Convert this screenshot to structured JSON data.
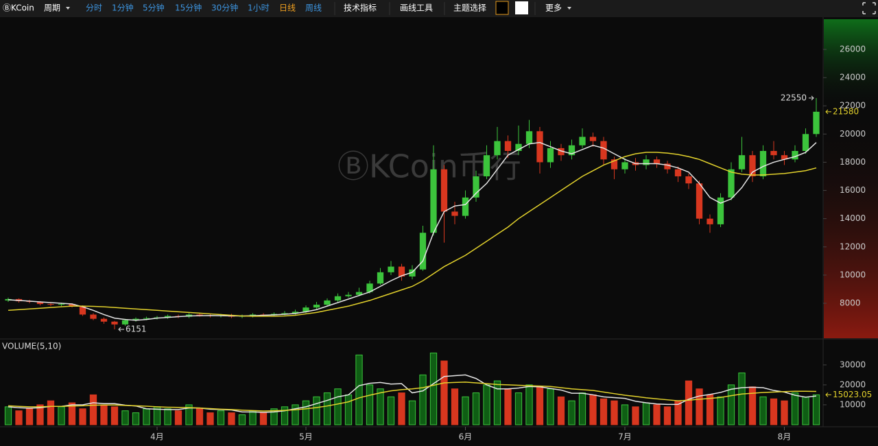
{
  "toolbar": {
    "logo": "ⒷKCoin",
    "period": "周期",
    "intervals": [
      "分时",
      "1分钟",
      "5分钟",
      "15分钟",
      "30分钟",
      "1小时",
      "日线",
      "周线"
    ],
    "active_interval": "日线",
    "buttons": [
      "技术指标",
      "画线工具"
    ],
    "theme": "主题选择",
    "more": "更多"
  },
  "watermark": "ⒷKCoin币行",
  "chart_data": {
    "type": "candlestick",
    "categories": [
      null,
      null,
      null,
      null,
      null,
      null,
      null,
      null,
      null,
      null,
      null,
      null,
      null,
      null,
      "4月",
      null,
      null,
      null,
      null,
      null,
      null,
      null,
      null,
      null,
      null,
      null,
      null,
      null,
      "5月",
      null,
      null,
      null,
      null,
      null,
      null,
      null,
      null,
      null,
      null,
      null,
      null,
      null,
      null,
      "6月",
      null,
      null,
      null,
      null,
      null,
      null,
      null,
      null,
      null,
      null,
      null,
      null,
      null,
      null,
      "7月",
      null,
      null,
      null,
      null,
      null,
      null,
      null,
      null,
      null,
      null,
      null,
      null,
      null,
      null,
      "8月",
      null,
      null,
      null
    ],
    "open": [
      8200,
      8300,
      8150,
      8100,
      7950,
      7900,
      7950,
      7800,
      7200,
      6900,
      6700,
      6500,
      6800,
      6900,
      6950,
      7000,
      7100,
      7050,
      7200,
      7150,
      7100,
      7150,
      7050,
      7100,
      7200,
      7150,
      7250,
      7300,
      7400,
      7700,
      7900,
      8200,
      8500,
      8600,
      8800,
      9400,
      10200,
      10600,
      9900,
      10400,
      13000,
      17500,
      14500,
      14200,
      15500,
      17000,
      18500,
      19500,
      18800,
      19300,
      20200,
      18000,
      19000,
      18500,
      19200,
      19800,
      19500,
      18200,
      17500,
      18000,
      17800,
      18200,
      17900,
      17500,
      17000,
      16500,
      14000,
      13600,
      15500,
      17500,
      18500,
      17000,
      18800,
      18500,
      18200,
      18800,
      20000
    ],
    "high": [
      8400,
      8350,
      8250,
      8150,
      8050,
      8050,
      8000,
      7850,
      7300,
      7000,
      6750,
      6900,
      7000,
      7050,
      7100,
      7200,
      7200,
      7300,
      7300,
      7250,
      7250,
      7250,
      7200,
      7300,
      7300,
      7350,
      7450,
      7550,
      7850,
      8100,
      8350,
      8700,
      8800,
      9100,
      9600,
      10500,
      11000,
      10800,
      10700,
      13500,
      19200,
      17800,
      15200,
      16000,
      17400,
      19200,
      20500,
      19900,
      20600,
      21000,
      20500,
      19500,
      19300,
      19600,
      20400,
      20100,
      19800,
      18400,
      18300,
      18300,
      18500,
      18400,
      18100,
      17700,
      17200,
      16700,
      14300,
      15800,
      18000,
      19800,
      18800,
      19200,
      19500,
      18800,
      19200,
      20400,
      22550
    ],
    "low": [
      8100,
      8050,
      8000,
      7850,
      7800,
      7800,
      7700,
      7100,
      6800,
      6550,
      6151,
      6400,
      6700,
      6800,
      6850,
      6900,
      6950,
      6950,
      7050,
      7000,
      7000,
      6950,
      6950,
      7000,
      7050,
      7050,
      7150,
      7200,
      7300,
      7600,
      7800,
      8100,
      8400,
      8500,
      8700,
      9300,
      10000,
      9600,
      9700,
      10300,
      12800,
      12300,
      13600,
      14000,
      15200,
      16800,
      18200,
      18300,
      18500,
      19000,
      17200,
      17600,
      18100,
      18200,
      19000,
      19100,
      17800,
      16800,
      17200,
      17400,
      17500,
      17600,
      17200,
      16600,
      16100,
      13600,
      13000,
      13400,
      15300,
      17300,
      16600,
      16800,
      18200,
      17800,
      18000,
      18600,
      19800
    ],
    "close": [
      8300,
      8150,
      8100,
      7950,
      7900,
      7950,
      7800,
      7200,
      6900,
      6700,
      6500,
      6800,
      6900,
      6950,
      7000,
      7100,
      7050,
      7200,
      7150,
      7100,
      7150,
      7050,
      7100,
      7200,
      7150,
      7250,
      7300,
      7400,
      7700,
      7900,
      8200,
      8500,
      8600,
      8800,
      9400,
      10200,
      10600,
      9900,
      10400,
      13000,
      17500,
      14500,
      14200,
      15500,
      17000,
      18500,
      19500,
      18800,
      19300,
      20200,
      18000,
      19000,
      18500,
      19200,
      19800,
      19500,
      18200,
      17500,
      18000,
      17800,
      18200,
      17900,
      17500,
      17000,
      16500,
      14000,
      13600,
      15500,
      17500,
      18500,
      17000,
      18800,
      18500,
      18200,
      18800,
      20000,
      21580
    ],
    "up_color": "#3cc43c",
    "down_color": "#d8371f",
    "lines": [
      {
        "color": "#e6e6e6",
        "values": [
          8250,
          8200,
          8150,
          8100,
          8050,
          8000,
          7950,
          7750,
          7500,
          7200,
          6950,
          6850,
          6800,
          6850,
          6950,
          7000,
          7050,
          7100,
          7120,
          7130,
          7120,
          7110,
          7100,
          7120,
          7150,
          7180,
          7220,
          7280,
          7400,
          7550,
          7800,
          8050,
          8300,
          8550,
          8800,
          9200,
          9600,
          9950,
          10200,
          11000,
          13000,
          14500,
          14900,
          15000,
          15800,
          16500,
          17500,
          18500,
          18900,
          19300,
          19400,
          19100,
          18800,
          18600,
          18900,
          19200,
          19000,
          18600,
          18200,
          17900,
          17900,
          17900,
          17800,
          17600,
          17300,
          16500,
          15500,
          15100,
          15400,
          16200,
          17300,
          17700,
          18000,
          18200,
          18400,
          18700,
          19400
        ]
      },
      {
        "color": "#e3d22c",
        "values": [
          7500,
          7550,
          7600,
          7650,
          7700,
          7750,
          7800,
          7800,
          7780,
          7750,
          7700,
          7650,
          7600,
          7550,
          7500,
          7450,
          7400,
          7350,
          7300,
          7250,
          7200,
          7150,
          7100,
          7080,
          7080,
          7080,
          7100,
          7150,
          7250,
          7350,
          7500,
          7650,
          7800,
          8000,
          8200,
          8450,
          8700,
          8950,
          9200,
          9600,
          10100,
          10600,
          11000,
          11400,
          11900,
          12400,
          12900,
          13400,
          14000,
          14500,
          15000,
          15500,
          16000,
          16500,
          17000,
          17400,
          17800,
          18100,
          18400,
          18600,
          18700,
          18700,
          18650,
          18550,
          18400,
          18200,
          17900,
          17600,
          17300,
          17150,
          17100,
          17100,
          17150,
          17200,
          17300,
          17400,
          17600
        ]
      }
    ],
    "ylim": [
      5520,
      28140
    ],
    "yticks": [
      8000,
      10000,
      12000,
      14000,
      16000,
      18000,
      20000,
      22000,
      24000,
      26000
    ],
    "volume": {
      "label": "VOLUME(5,10)",
      "values": [
        9000,
        7000,
        8000,
        10000,
        12000,
        9000,
        11000,
        8000,
        15000,
        10000,
        9000,
        7000,
        6000,
        8000,
        9000,
        8000,
        7000,
        10000,
        8000,
        6000,
        7000,
        6000,
        5000,
        7000,
        6000,
        8000,
        9000,
        10000,
        12000,
        14000,
        16000,
        18000,
        15000,
        35000,
        20000,
        18000,
        14000,
        16000,
        12000,
        25000,
        36000,
        32000,
        18000,
        14000,
        16000,
        20000,
        22000,
        18000,
        16000,
        20000,
        19000,
        18000,
        14000,
        12000,
        16000,
        15000,
        13000,
        12000,
        10000,
        9000,
        11000,
        10000,
        9000,
        12000,
        22000,
        18000,
        15000,
        14000,
        20000,
        26000,
        19000,
        14000,
        13000,
        12000,
        16000,
        14000,
        15023.05
      ],
      "lines": [
        {
          "color": "#e6e6e6",
          "values": [
            9000,
            8500,
            8300,
            8500,
            9200,
            9200,
            10000,
            10000,
            11000,
            10600,
            10600,
            9800,
            9400,
            8000,
            7800,
            7600,
            7600,
            8400,
            8400,
            7800,
            7600,
            7400,
            6400,
            6400,
            6200,
            6400,
            7000,
            8000,
            9000,
            10600,
            12200,
            14000,
            15000,
            19600,
            20800,
            21200,
            20400,
            20600,
            16000,
            17000,
            20600,
            24200,
            24600,
            25000,
            23200,
            20000,
            18000,
            18000,
            18400,
            19200,
            19000,
            18200,
            17400,
            15800,
            15800,
            15000,
            14000,
            13600,
            13200,
            11800,
            11000,
            10400,
            10200,
            10200,
            12800,
            14400,
            15200,
            16200,
            17800,
            18600,
            18800,
            18600,
            17200,
            16400,
            14800,
            13800,
            14400
          ]
        },
        {
          "color": "#e3d22c",
          "values": [
            9500,
            9200,
            9000,
            9000,
            9200,
            9200,
            9400,
            9500,
            9800,
            9900,
            9900,
            9700,
            9500,
            9300,
            9000,
            8800,
            8700,
            8600,
            8400,
            8100,
            7800,
            7600,
            7300,
            7100,
            6900,
            7000,
            7200,
            7500,
            8000,
            8600,
            9400,
            10400,
            11500,
            13500,
            14800,
            16000,
            17000,
            17600,
            18000,
            18600,
            19800,
            21000,
            21200,
            21400,
            21000,
            20600,
            20200,
            20000,
            19800,
            19600,
            19400,
            19200,
            18600,
            18000,
            17600,
            17200,
            16400,
            15600,
            14800,
            14200,
            13500,
            13000,
            12500,
            12000,
            12300,
            12800,
            13200,
            13700,
            14600,
            15400,
            15800,
            16200,
            16400,
            16600,
            16800,
            16800,
            16700
          ]
        }
      ],
      "ylim": [
        0,
        42000
      ],
      "yticks": [
        10000,
        20000,
        30000
      ]
    }
  }
}
